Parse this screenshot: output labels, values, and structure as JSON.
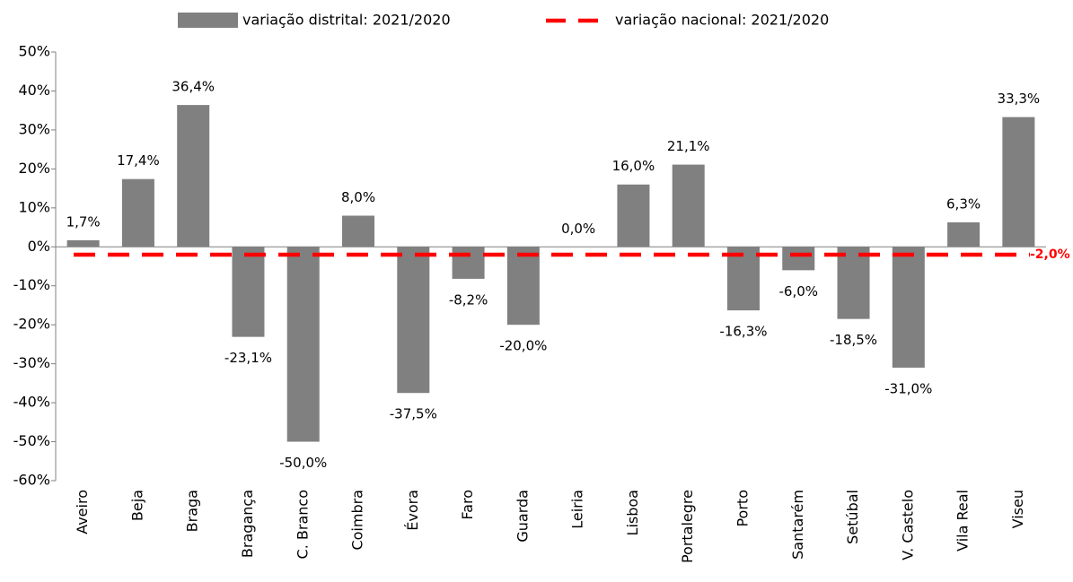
{
  "chart_data": {
    "type": "bar",
    "categories": [
      "Aveiro",
      "Beja",
      "Braga",
      "Bragança",
      "C. Branco",
      "Coimbra",
      "Évora",
      "Faro",
      "Guarda",
      "Leiria",
      "Lisboa",
      "Portalegre",
      "Porto",
      "Santarém",
      "Setúbal",
      "V. Castelo",
      "Vila Real",
      "Viseu"
    ],
    "series": [
      {
        "name": "variação distrital: 2021/2020",
        "color": "#808080",
        "values": [
          1.7,
          17.4,
          36.4,
          -23.1,
          -50.0,
          8.0,
          -37.5,
          -8.2,
          -20.0,
          0.0,
          16.0,
          21.1,
          -16.3,
          -6.0,
          -18.5,
          -31.0,
          6.3,
          33.3
        ],
        "value_labels": [
          "1,7%",
          "17,4%",
          "36,4%",
          "-23,1%",
          "-50,0%",
          "8,0%",
          "-37,5%",
          "-8,2%",
          "-20,0%",
          "0,0%",
          "16,0%",
          "21,1%",
          "-16,3%",
          "-6,0%",
          "-18,5%",
          "-31,0%",
          "6,3%",
          "33,3%"
        ]
      }
    ],
    "reference_line": {
      "name": "variação nacional: 2021/2020",
      "color": "#ff0000",
      "value": -2.0,
      "value_label": "-2,0%"
    },
    "ylim": [
      -60,
      50
    ],
    "yticks": [
      {
        "value": -60,
        "label": "-60%"
      },
      {
        "value": -50,
        "label": "-50%"
      },
      {
        "value": -40,
        "label": "-40%"
      },
      {
        "value": -30,
        "label": "-30%"
      },
      {
        "value": -20,
        "label": "-20%"
      },
      {
        "value": -10,
        "label": "-10%"
      },
      {
        "value": 0,
        "label": "0%"
      },
      {
        "value": 10,
        "label": "10%"
      },
      {
        "value": 20,
        "label": "20%"
      },
      {
        "value": 30,
        "label": "30%"
      },
      {
        "value": 40,
        "label": "40%"
      },
      {
        "value": 50,
        "label": "50%"
      }
    ],
    "legend": "top"
  }
}
